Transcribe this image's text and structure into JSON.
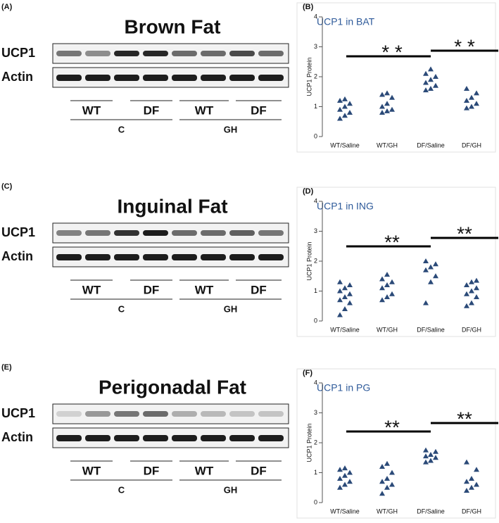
{
  "panels": [
    {
      "label": "(A)",
      "title": "Brown Fat",
      "rows": [
        "UCP1",
        "Actin"
      ],
      "groups": [
        "WT",
        "DF",
        "WT",
        "DF"
      ],
      "treatments": [
        "C",
        "GH"
      ]
    },
    {
      "label": "(C)",
      "title": "Inguinal Fat",
      "rows": [
        "UCP1",
        "Actin"
      ],
      "groups": [
        "WT",
        "DF",
        "WT",
        "DF"
      ],
      "treatments": [
        "C",
        "GH"
      ]
    },
    {
      "label": "(E)",
      "title": "Perigonadal Fat",
      "rows": [
        "UCP1",
        "Actin"
      ],
      "groups": [
        "WT",
        "DF",
        "WT",
        "DF"
      ],
      "treatments": [
        "C",
        "GH"
      ]
    }
  ],
  "chart_data": [
    {
      "type": "scatter",
      "panel_label": "(B)",
      "title": "UCP1 in BAT",
      "y_label": "UCP1 Protein",
      "color": "#2b4a78",
      "categories": [
        "WT/Saline",
        "WT/GH",
        "DF/Saline",
        "DF/GH"
      ],
      "values": [
        [
          0.6,
          0.7,
          0.8,
          0.9,
          1.0,
          1.1,
          1.2,
          1.25
        ],
        [
          0.8,
          0.85,
          0.9,
          1.0,
          1.1,
          1.3,
          1.4,
          1.45
        ],
        [
          1.55,
          1.6,
          1.7,
          1.8,
          1.9,
          2.0,
          2.1,
          2.25
        ],
        [
          0.95,
          1.0,
          1.1,
          1.2,
          1.3,
          1.45,
          1.6
        ]
      ],
      "ylim": [
        0,
        4
      ],
      "yticks": [
        0,
        1,
        2,
        3,
        4
      ],
      "annotations": [
        "* *",
        "* *"
      ]
    },
    {
      "type": "scatter",
      "panel_label": "(D)",
      "title": "UCP1 in ING",
      "y_label": "UCP1 Protein",
      "color": "#2b4a78",
      "categories": [
        "WT/Saline",
        "WT/GH",
        "DF/Saline",
        "DF/GH"
      ],
      "values": [
        [
          0.2,
          0.4,
          0.6,
          0.7,
          0.8,
          0.9,
          1.0,
          1.1,
          1.2,
          1.3
        ],
        [
          0.7,
          0.8,
          0.9,
          1.1,
          1.2,
          1.3,
          1.4,
          1.55
        ],
        [
          0.6,
          1.3,
          1.5,
          1.7,
          1.8,
          1.9,
          2.0
        ],
        [
          0.5,
          0.6,
          0.8,
          0.9,
          1.0,
          1.1,
          1.2,
          1.3,
          1.35
        ]
      ],
      "ylim": [
        0,
        4
      ],
      "yticks": [
        0,
        1,
        2,
        3,
        4
      ],
      "annotations": [
        "**",
        "**"
      ]
    },
    {
      "type": "scatter",
      "panel_label": "(F)",
      "title": "UCP1 in PG",
      "y_label": "UCP1 Protein",
      "color": "#2b4a78",
      "categories": [
        "WT/Saline",
        "WT/GH",
        "DF/Saline",
        "DF/GH"
      ],
      "values": [
        [
          0.5,
          0.6,
          0.7,
          0.8,
          0.9,
          1.0,
          1.1,
          1.15
        ],
        [
          0.3,
          0.5,
          0.6,
          0.7,
          0.8,
          1.0,
          1.2,
          1.3
        ],
        [
          1.35,
          1.4,
          1.5,
          1.55,
          1.6,
          1.7,
          1.75
        ],
        [
          0.4,
          0.5,
          0.6,
          0.7,
          0.8,
          1.1,
          1.35
        ]
      ],
      "ylim": [
        0,
        4
      ],
      "yticks": [
        0,
        1,
        2,
        3,
        4
      ],
      "annotations": [
        "**",
        "**"
      ]
    }
  ]
}
